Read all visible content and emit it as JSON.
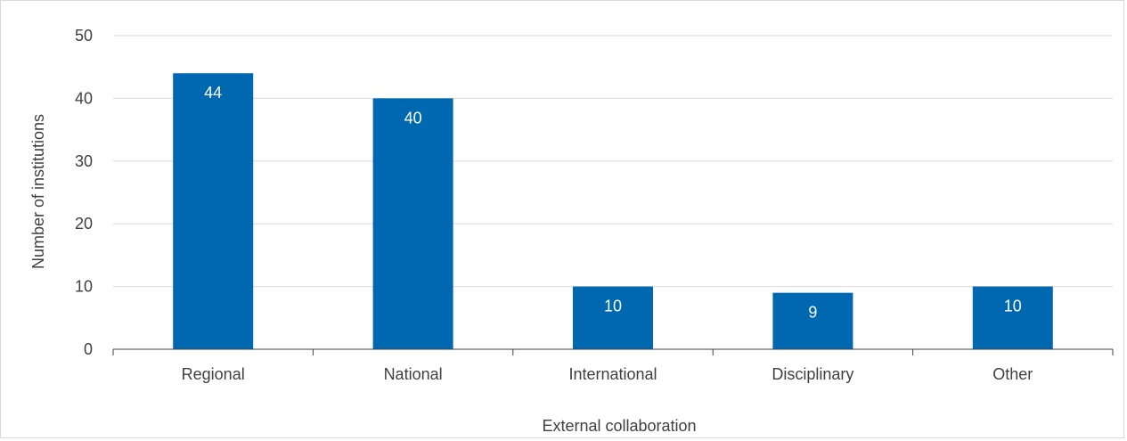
{
  "chart_data": {
    "type": "bar",
    "categories": [
      "Regional",
      "National",
      "International",
      "Disciplinary",
      "Other"
    ],
    "values": [
      44,
      40,
      10,
      9,
      10
    ],
    "title": "",
    "xlabel": "External collaboration",
    "ylabel": "Number of institutions",
    "ylim": [
      0,
      50
    ],
    "yticks": [
      "0",
      "10",
      "20",
      "30",
      "40",
      "50"
    ],
    "data_labels": [
      "44",
      "40",
      "10",
      "9",
      "10"
    ],
    "grid": true,
    "legend": "none",
    "colors": {
      "bar": "#0067b1",
      "grid": "#d9d9d9",
      "axis": "#404040",
      "text": "#404040",
      "data_label": "#ffffff"
    }
  }
}
